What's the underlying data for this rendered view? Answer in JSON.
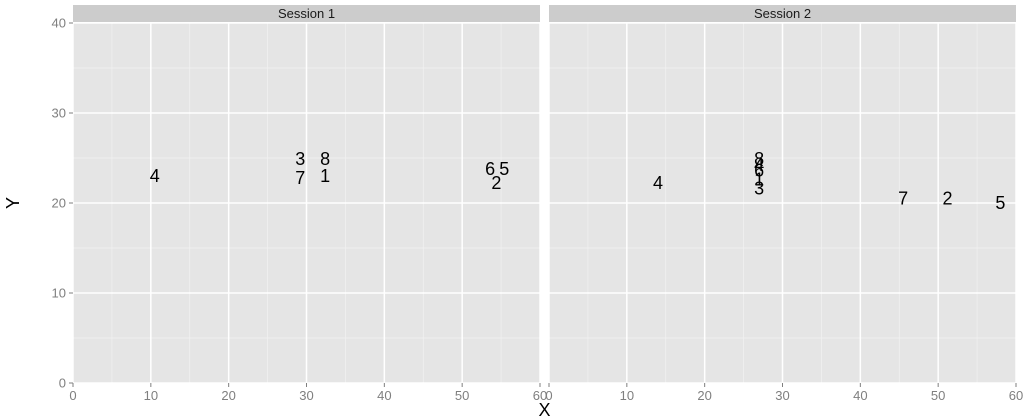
{
  "chart_data": {
    "type": "scatter",
    "marker": "text-labels",
    "xlabel": "X",
    "ylabel": "Y",
    "xlim": [
      0,
      60
    ],
    "ylim": [
      0,
      40
    ],
    "x_ticks": [
      0,
      10,
      20,
      30,
      40,
      50,
      60
    ],
    "x_tick_labels": [
      "0",
      "10",
      "20",
      "30",
      "40",
      "50",
      "60"
    ],
    "y_ticks": [
      0,
      10,
      20,
      30,
      40
    ],
    "y_tick_labels": [
      "0",
      "10",
      "20",
      "30",
      "40"
    ],
    "grid": true,
    "colors": {
      "panel_background": "#e5e5e5",
      "grid_major": "#ffffff",
      "grid_minor": "#f2f2f2",
      "strip_background": "#cccccc",
      "tick_label": "#7f7f7f",
      "point_label": "#000000"
    },
    "facets": [
      {
        "strip": "Session 1",
        "points": [
          {
            "label": "4",
            "x": 10.5,
            "y": 23.0
          },
          {
            "label": "3",
            "x": 29.2,
            "y": 24.9
          },
          {
            "label": "7",
            "x": 29.2,
            "y": 22.8
          },
          {
            "label": "8",
            "x": 32.4,
            "y": 24.9
          },
          {
            "label": "1",
            "x": 32.4,
            "y": 23.0
          },
          {
            "label": "6",
            "x": 53.6,
            "y": 23.8
          },
          {
            "label": "5",
            "x": 55.4,
            "y": 23.8
          },
          {
            "label": "2",
            "x": 54.4,
            "y": 22.2
          }
        ]
      },
      {
        "strip": "Session 2",
        "points": [
          {
            "label": "4",
            "x": 14.0,
            "y": 22.2
          },
          {
            "label": "8",
            "x": 27.0,
            "y": 24.9
          },
          {
            "label": "4",
            "x": 27.0,
            "y": 24.2
          },
          {
            "label": "6",
            "x": 27.0,
            "y": 23.6
          },
          {
            "label": "1",
            "x": 27.0,
            "y": 22.6
          },
          {
            "label": "3",
            "x": 27.0,
            "y": 21.6
          },
          {
            "label": "7",
            "x": 45.5,
            "y": 20.5
          },
          {
            "label": "2",
            "x": 51.2,
            "y": 20.5
          },
          {
            "label": "5",
            "x": 58.0,
            "y": 20.0
          }
        ]
      }
    ]
  }
}
